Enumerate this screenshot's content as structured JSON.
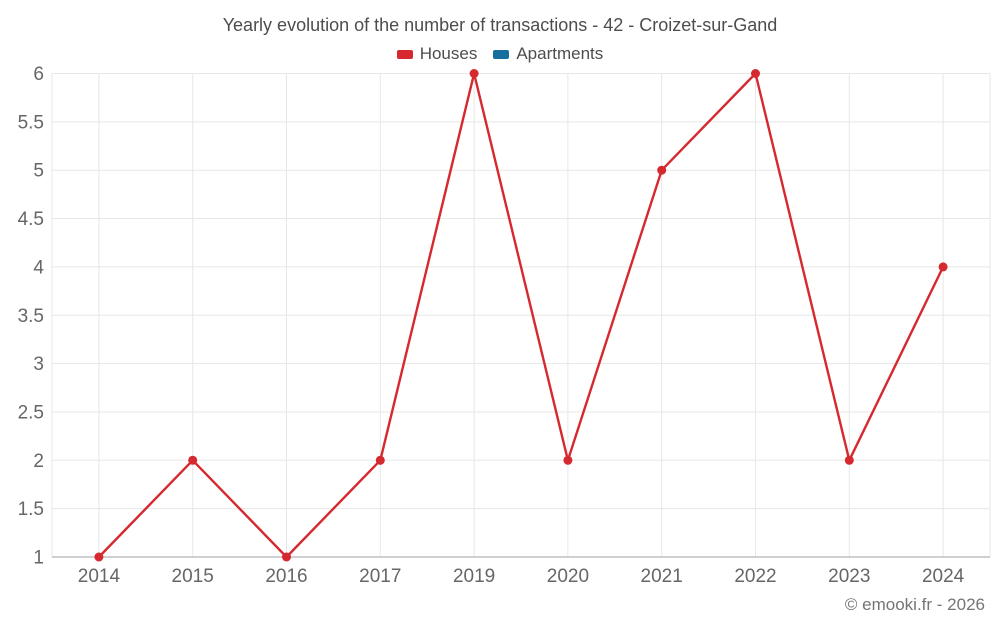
{
  "chart_data": {
    "type": "line",
    "title": "Yearly evolution of the number of transactions - 42 - Croizet-sur-Gand",
    "categories": [
      "2014",
      "2015",
      "2016",
      "2017",
      "2019",
      "2020",
      "2021",
      "2022",
      "2023",
      "2024"
    ],
    "series": [
      {
        "name": "Houses",
        "color": "#d5292f",
        "values": [
          1,
          2,
          1,
          2,
          6,
          2,
          5,
          6,
          2,
          4
        ]
      },
      {
        "name": "Apartments",
        "color": "#146f9f",
        "values": []
      }
    ],
    "xlabel": "",
    "ylabel": "",
    "ylim": [
      1,
      6
    ],
    "ytick_step": 0.5,
    "grid": true,
    "legend_position": "top-center",
    "marker": "circle"
  },
  "colors": {
    "grid_line": "#e7e7e7",
    "axis_line": "#b3b3b3",
    "tick_label": "#666666",
    "title_text": "#4d4d4d",
    "footer_text": "#757575"
  },
  "footer": {
    "credit": "© emooki.fr - 2026"
  }
}
